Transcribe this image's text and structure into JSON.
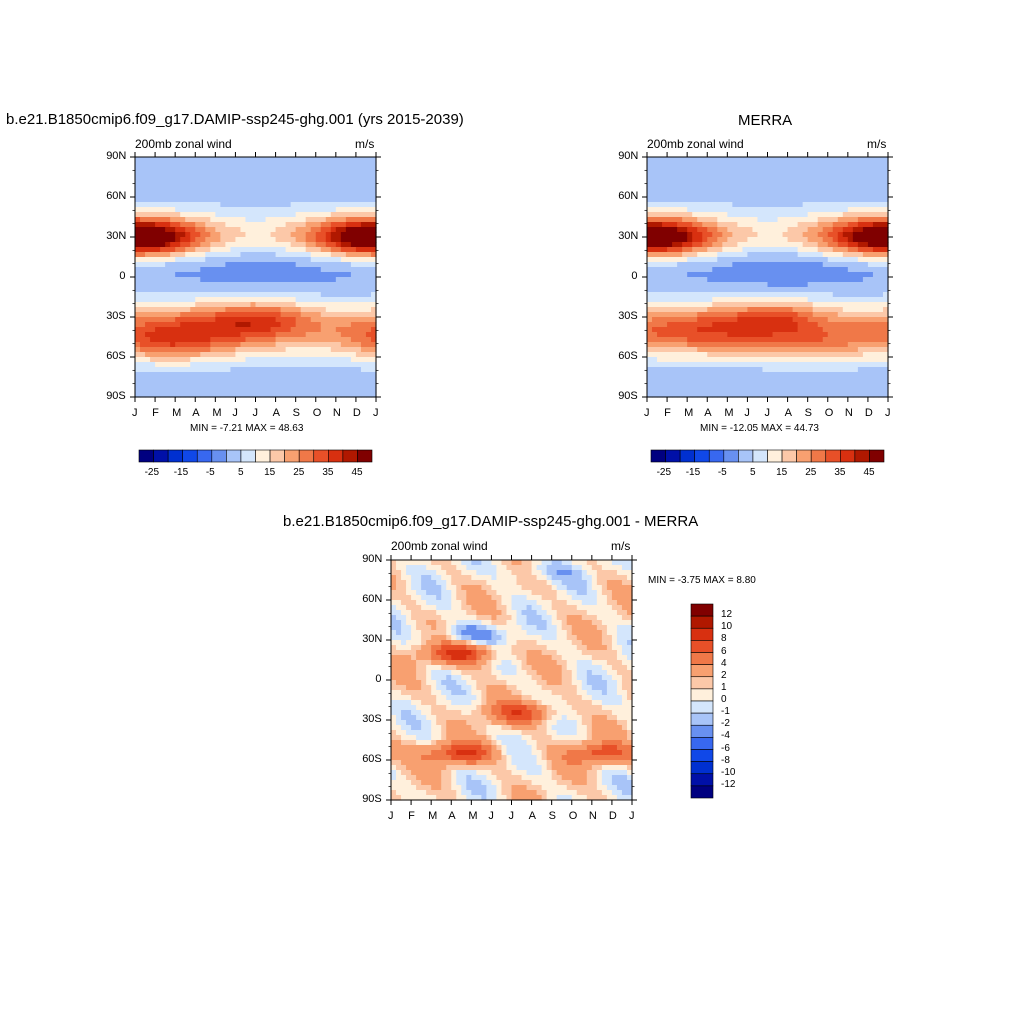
{
  "chart_data": [
    {
      "type": "heatmap",
      "title": "b.e21.B1850cmip6.f09_g17.DAMIP-ssp245-ghg.001 (yrs 2015-2039)",
      "left_string": "200mb zonal wind",
      "right_string": "m/s",
      "x_ticks": [
        "J",
        "F",
        "M",
        "A",
        "M",
        "J",
        "J",
        "A",
        "S",
        "O",
        "N",
        "D",
        "J"
      ],
      "y_ticks": [
        "90N",
        "60N",
        "30N",
        "0",
        "30S",
        "60S",
        "90S"
      ],
      "stats": "MIN =  -7.21 MAX =  48.63",
      "colorbar_labels": [
        "-25",
        "-15",
        "-5",
        "5",
        "15",
        "25",
        "35",
        "45"
      ],
      "colorbar_levels": [
        -30,
        -25,
        -20,
        -15,
        -10,
        -5,
        0,
        5,
        10,
        15,
        20,
        25,
        30,
        35,
        40,
        45,
        50
      ],
      "features": [
        {
          "x": 0.4,
          "lat": 28,
          "value": 48
        },
        {
          "x": 11.8,
          "lat": 30,
          "value": 38
        },
        {
          "x": 6.5,
          "lat": 8,
          "value": -7
        },
        {
          "x": 6.3,
          "lat": -30,
          "value": 44
        },
        {
          "x": 1.5,
          "lat": -52,
          "value": 30
        }
      ]
    },
    {
      "type": "heatmap",
      "title": "MERRA",
      "left_string": "200mb zonal wind",
      "right_string": "m/s",
      "x_ticks": [
        "J",
        "F",
        "M",
        "A",
        "M",
        "J",
        "J",
        "A",
        "S",
        "O",
        "N",
        "D",
        "J"
      ],
      "y_ticks": [
        "90N",
        "60N",
        "30N",
        "0",
        "30S",
        "60S",
        "90S"
      ],
      "stats": "MIN =  -12.05 MAX =  44.73",
      "colorbar_labels": [
        "-25",
        "-15",
        "-5",
        "5",
        "15",
        "25",
        "35",
        "45"
      ],
      "colorbar_levels": [
        -30,
        -25,
        -20,
        -15,
        -10,
        -5,
        0,
        5,
        10,
        15,
        20,
        25,
        30,
        35,
        40,
        45,
        50
      ],
      "features": [
        {
          "x": 0.5,
          "lat": 28,
          "value": 42
        },
        {
          "x": 11.8,
          "lat": 30,
          "value": 38
        },
        {
          "x": 6.8,
          "lat": 6,
          "value": -12
        },
        {
          "x": 6.5,
          "lat": -30,
          "value": 42
        },
        {
          "x": 8.5,
          "lat": -52,
          "value": 30
        }
      ]
    },
    {
      "type": "heatmap",
      "title": "b.e21.B1850cmip6.f09_g17.DAMIP-ssp245-ghg.001 - MERRA",
      "left_string": "200mb zonal wind",
      "right_string": "m/s",
      "x_ticks": [
        "J",
        "F",
        "M",
        "A",
        "M",
        "J",
        "J",
        "A",
        "S",
        "O",
        "N",
        "D",
        "J"
      ],
      "y_ticks": [
        "90N",
        "60N",
        "30N",
        "0",
        "30S",
        "60S",
        "90S"
      ],
      "stats": "MIN =  -3.75 MAX =   8.80",
      "colorbar_labels": [
        "12",
        "10",
        "8",
        "6",
        "4",
        "2",
        "1",
        "0",
        "-1",
        "-2",
        "-4",
        "-6",
        "-8",
        "-10",
        "-12"
      ],
      "colorbar_levels": [
        -14,
        -12,
        -10,
        -8,
        -6,
        -4,
        -2,
        -1,
        0,
        1,
        2,
        4,
        6,
        8,
        10,
        12,
        14
      ],
      "features": [
        {
          "x": 4.0,
          "lat": 34,
          "value": -3.5
        },
        {
          "x": 3.5,
          "lat": 20,
          "value": 8
        },
        {
          "x": 6.5,
          "lat": -25,
          "value": 6
        },
        {
          "x": 3.5,
          "lat": -55,
          "value": 7
        },
        {
          "x": 10.5,
          "lat": -55,
          "value": 6
        },
        {
          "x": 7.5,
          "lat": 82,
          "value": -2
        }
      ]
    }
  ]
}
